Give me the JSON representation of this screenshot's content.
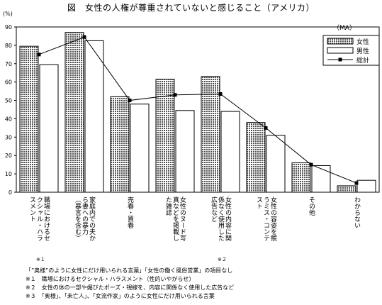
{
  "title": "図　女性の人権が尊重されていないと感じること（アメリカ）",
  "chart_data": {
    "type": "bar",
    "unit_label": "(%)",
    "ylim": [
      0,
      90
    ],
    "yticks": [
      0,
      10,
      20,
      30,
      40,
      50,
      60,
      70,
      80,
      90
    ],
    "ma_label": "（MA）",
    "categories": [
      {
        "lines": [
          "職場におけるセ",
          "クシャル・ハラ",
          "スメント"
        ],
        "mark": "※１"
      },
      {
        "lines": [
          "家庭内での夫か",
          "ら妻への暴力",
          "（暴言を含む）"
        ]
      },
      {
        "lines": [
          "売春・買春"
        ]
      },
      {
        "lines": [
          "女性のヌード写",
          "真などを掲載し",
          "た雑誌"
        ]
      },
      {
        "lines": [
          "女性の内容に関",
          "係なく使用した",
          "広告など"
        ],
        "mark": "※２"
      },
      {
        "lines": [
          "女性の容姿を競",
          "うミス・コンテ",
          "スト"
        ]
      },
      {
        "lines": [
          "その他"
        ]
      },
      {
        "lines": [
          "わからない"
        ]
      }
    ],
    "series": [
      {
        "name": "女性",
        "values": [
          79.5,
          87,
          52,
          61.5,
          63,
          38,
          16,
          3.5
        ]
      },
      {
        "name": "男性",
        "values": [
          69.5,
          82.5,
          48,
          44.5,
          44,
          31,
          14.5,
          6.5
        ]
      },
      {
        "name": "総計",
        "values": [
          75,
          84.5,
          50,
          53,
          53.5,
          35,
          15,
          5
        ]
      }
    ]
  },
  "notes": [
    "「”奥様”のように女性にだけ用いられる言葉」「女性の働く風俗営業」の項目なし",
    "※１　職場におけるセクシャル・ハラスメント（性的いやがらせ）",
    "※２　女性の体の一部や媚びたポーズ・視線を、内容に関係なく使用した広告など",
    "※３　「奥様」、「未亡人」、「女流作家」のように女性にだけ用いられる言葉"
  ],
  "colors": {
    "female_fill": "#6e6e6e",
    "male_fill": "#ffffff",
    "total_line": "#000000"
  }
}
